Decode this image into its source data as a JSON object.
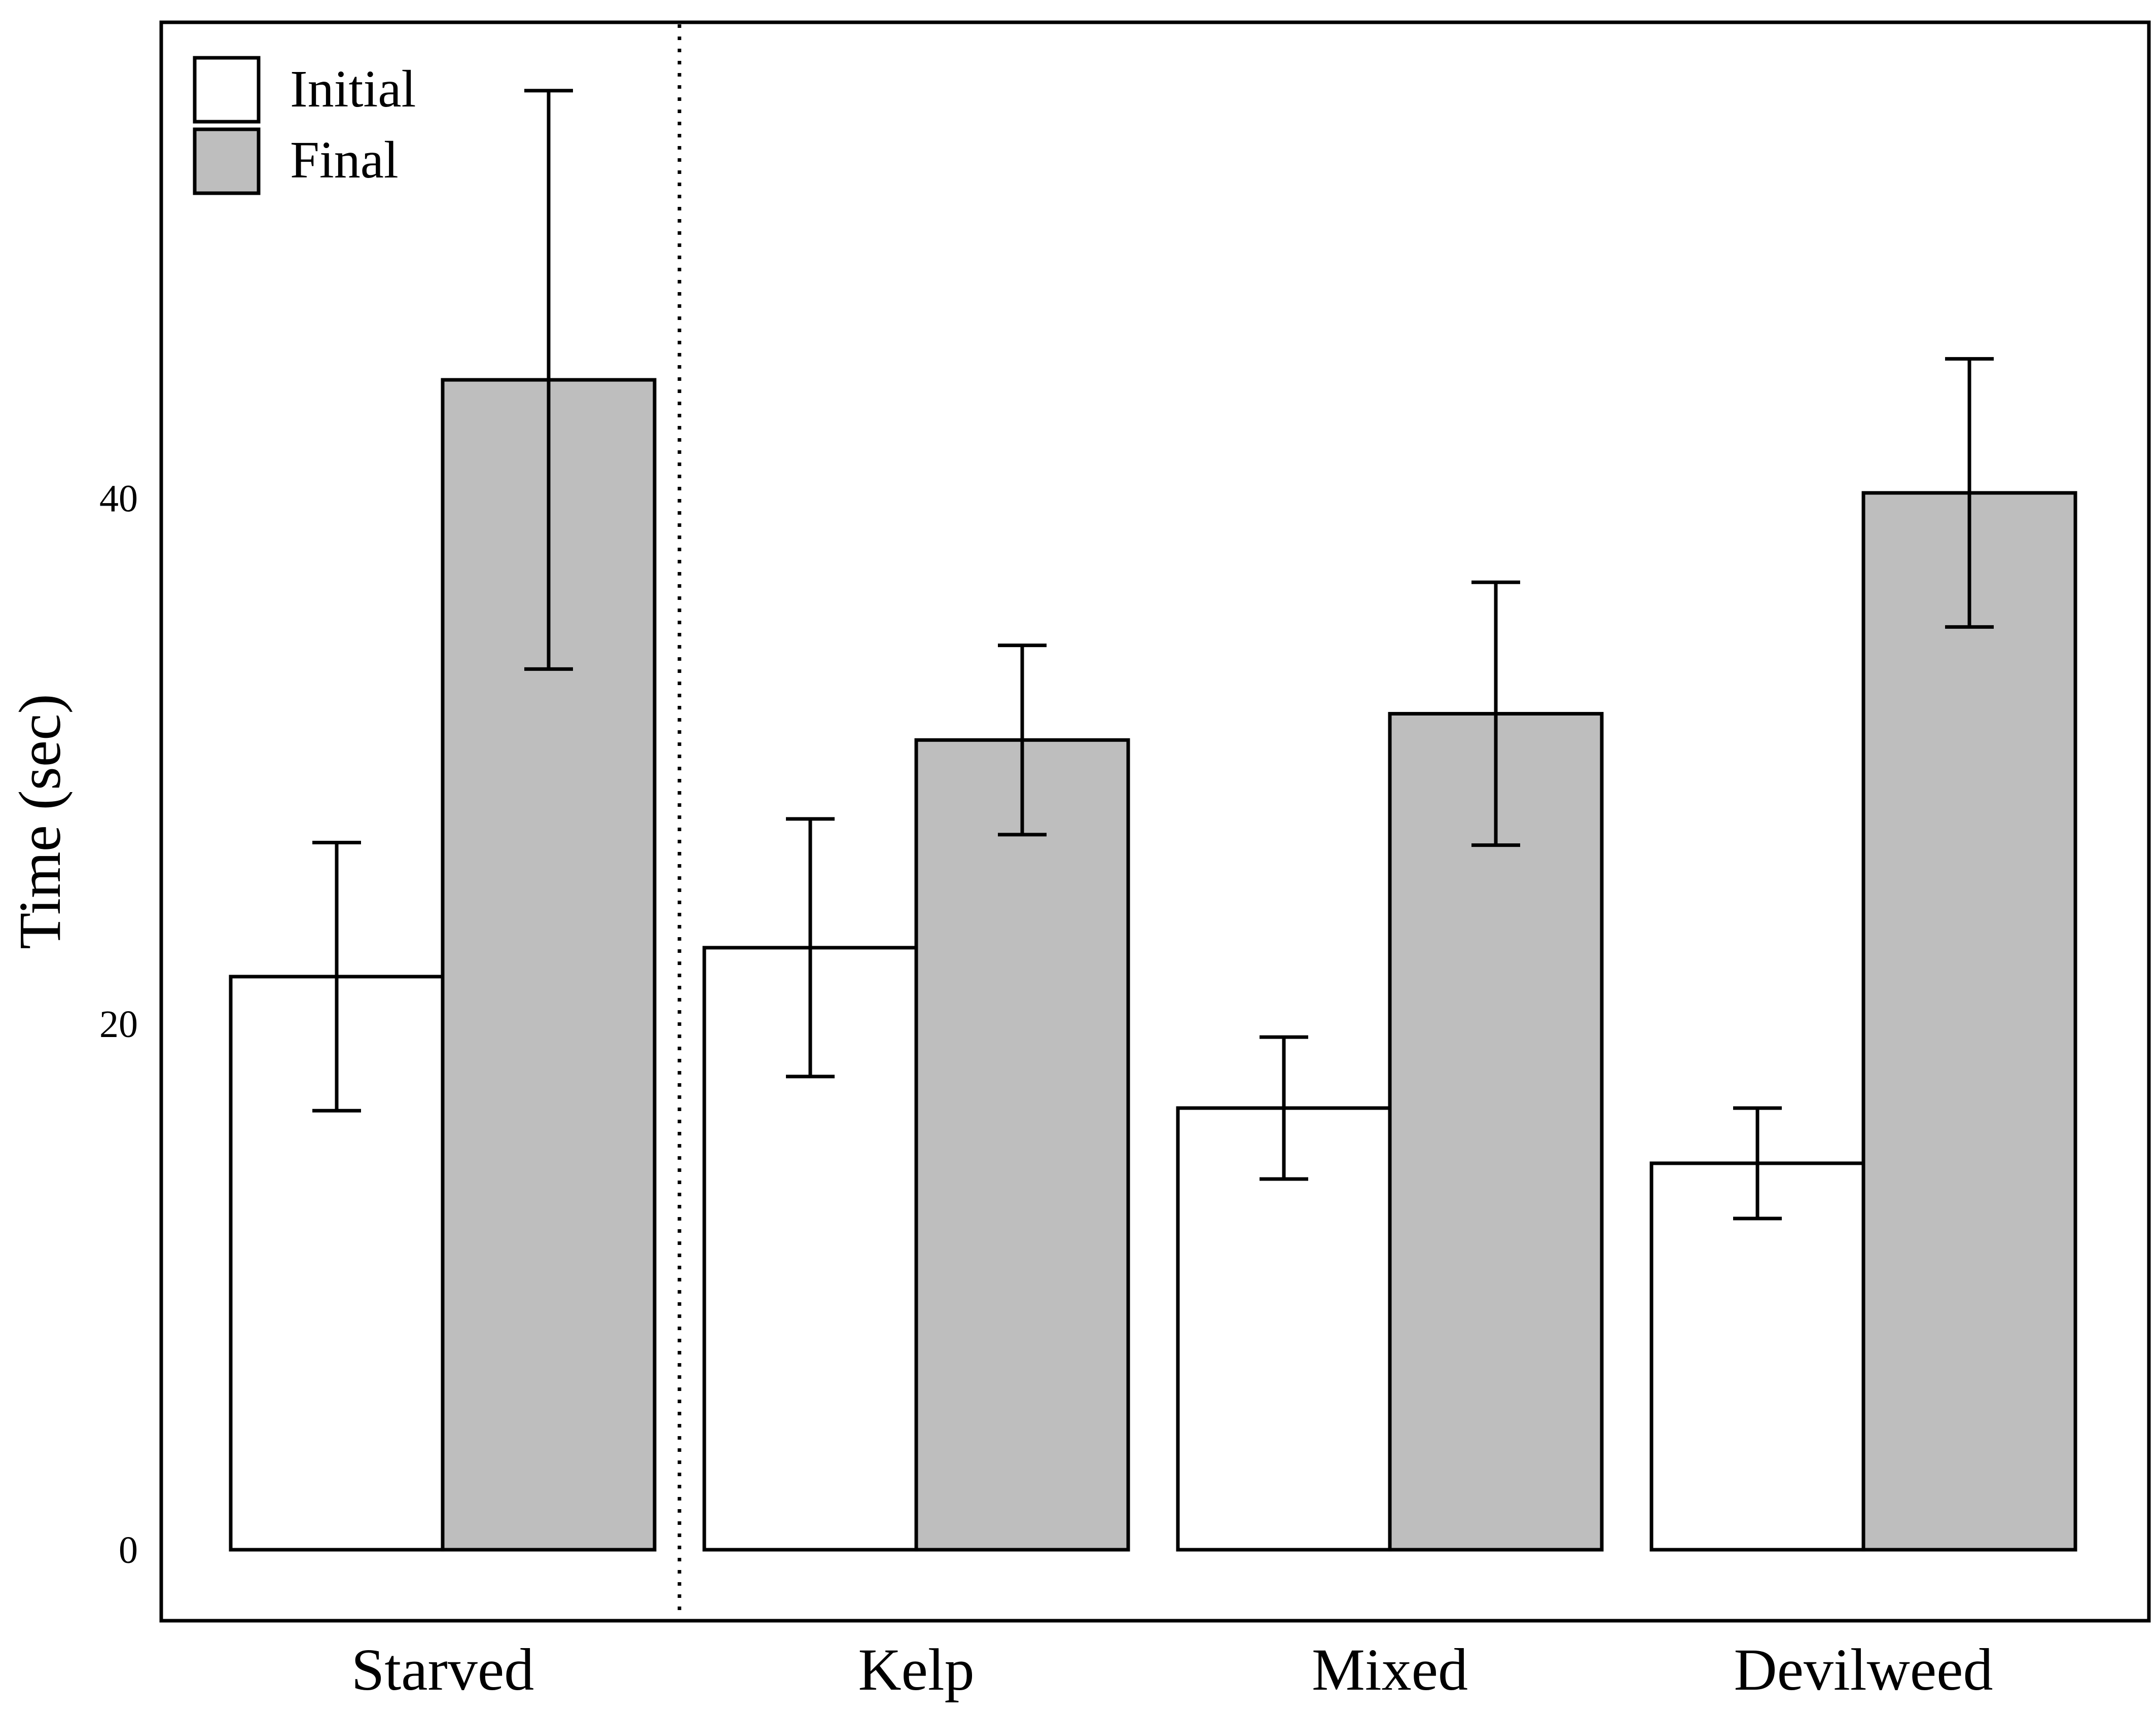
{
  "chart_data": {
    "type": "bar",
    "categories": [
      "Starved",
      "Kelp",
      "Mixed",
      "Devilweed"
    ],
    "series": [
      {
        "name": "Initial",
        "color": "#ffffff",
        "values": [
          21.8,
          22.9,
          16.8,
          14.7
        ],
        "error": [
          5.1,
          4.9,
          2.7,
          2.1
        ]
      },
      {
        "name": "Final",
        "color": "#bebebe",
        "values": [
          44.5,
          30.8,
          31.8,
          40.2
        ],
        "error": [
          11.0,
          3.6,
          5.0,
          5.1
        ]
      }
    ],
    "ylabel": "Time (sec)",
    "xlabel": "",
    "yticks": [
      0,
      20,
      40
    ],
    "ylim": [
      -2.7,
      58.1
    ],
    "grid": false,
    "legend": "top-left",
    "separator": "dotted line between Starved and Kelp"
  }
}
